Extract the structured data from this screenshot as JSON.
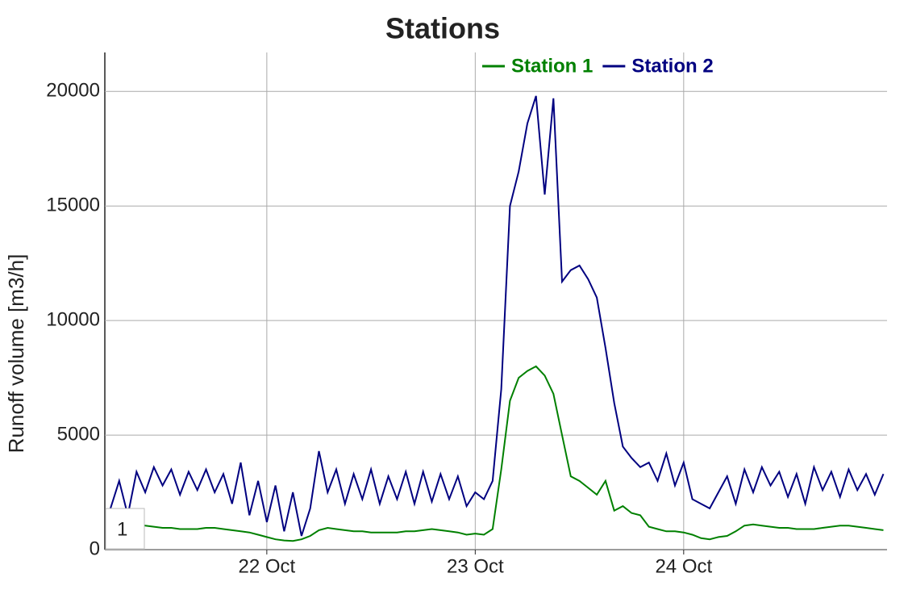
{
  "chart_data": {
    "type": "line",
    "title": "Stations",
    "y_label": "Runoff volume [m3/h]",
    "categories": [
      null,
      null,
      null,
      null,
      null,
      null,
      null,
      null,
      null,
      null,
      null,
      null,
      null,
      null,
      null,
      null,
      null,
      null,
      "22 Oct",
      null,
      null,
      null,
      null,
      null,
      null,
      null,
      null,
      null,
      null,
      null,
      null,
      null,
      null,
      null,
      null,
      null,
      null,
      null,
      null,
      null,
      null,
      null,
      "23 Oct",
      null,
      null,
      null,
      null,
      null,
      null,
      null,
      null,
      null,
      null,
      null,
      null,
      null,
      null,
      null,
      null,
      null,
      null,
      null,
      null,
      null,
      null,
      null,
      "24 Oct",
      null,
      null,
      null,
      null,
      null,
      null,
      null,
      null,
      null,
      null,
      null,
      null,
      null,
      null,
      null,
      null,
      null,
      null,
      null,
      null,
      null,
      null,
      null
    ],
    "series": [
      {
        "name": "Station 1",
        "color": "#008000",
        "values": [
          700,
          900,
          1050,
          1100,
          1050,
          1000,
          950,
          950,
          900,
          900,
          900,
          950,
          950,
          900,
          850,
          800,
          750,
          650,
          550,
          450,
          400,
          380,
          450,
          600,
          850,
          950,
          900,
          850,
          800,
          800,
          750,
          750,
          750,
          750,
          800,
          800,
          850,
          900,
          850,
          800,
          750,
          650,
          700,
          650,
          900,
          3500,
          6500,
          7500,
          7800,
          8000,
          7600,
          6800,
          5000,
          3200,
          3000,
          2700,
          2400,
          3000,
          1700,
          1900,
          1600,
          1500,
          1000,
          900,
          800,
          800,
          750,
          650,
          500,
          450,
          550,
          600,
          800,
          1050,
          1100,
          1050,
          1000,
          950,
          950,
          900,
          900,
          900,
          950,
          1000,
          1050,
          1050,
          1000,
          950,
          900,
          850
        ]
      },
      {
        "name": "Station 2",
        "color": "#000080",
        "values": [
          1800,
          3000,
          1500,
          3400,
          2500,
          3600,
          2800,
          3500,
          2400,
          3400,
          2600,
          3500,
          2500,
          3300,
          2000,
          3800,
          1500,
          3000,
          1200,
          2800,
          800,
          2500,
          600,
          1800,
          4300,
          2500,
          3500,
          2000,
          3300,
          2200,
          3500,
          2000,
          3200,
          2200,
          3400,
          2000,
          3400,
          2100,
          3300,
          2200,
          3200,
          1900,
          2500,
          2200,
          3000,
          7000,
          15000,
          16500,
          18600,
          19800,
          15500,
          19700,
          11700,
          12200,
          12400,
          11800,
          11000,
          8800,
          6400,
          4500,
          4000,
          3600,
          3800,
          3000,
          4200,
          2800,
          3800,
          2200,
          2000,
          1800,
          2500,
          3200,
          2000,
          3500,
          2500,
          3600,
          2800,
          3400,
          2300,
          3300,
          2000,
          3600,
          2600,
          3400,
          2300,
          3500,
          2600,
          3300,
          2400,
          3300
        ]
      }
    ],
    "ylim": [
      0,
      21700
    ],
    "yticks": [
      0,
      5000,
      10000,
      15000,
      20000
    ],
    "grid": true,
    "legend": "top"
  },
  "badge": "1"
}
